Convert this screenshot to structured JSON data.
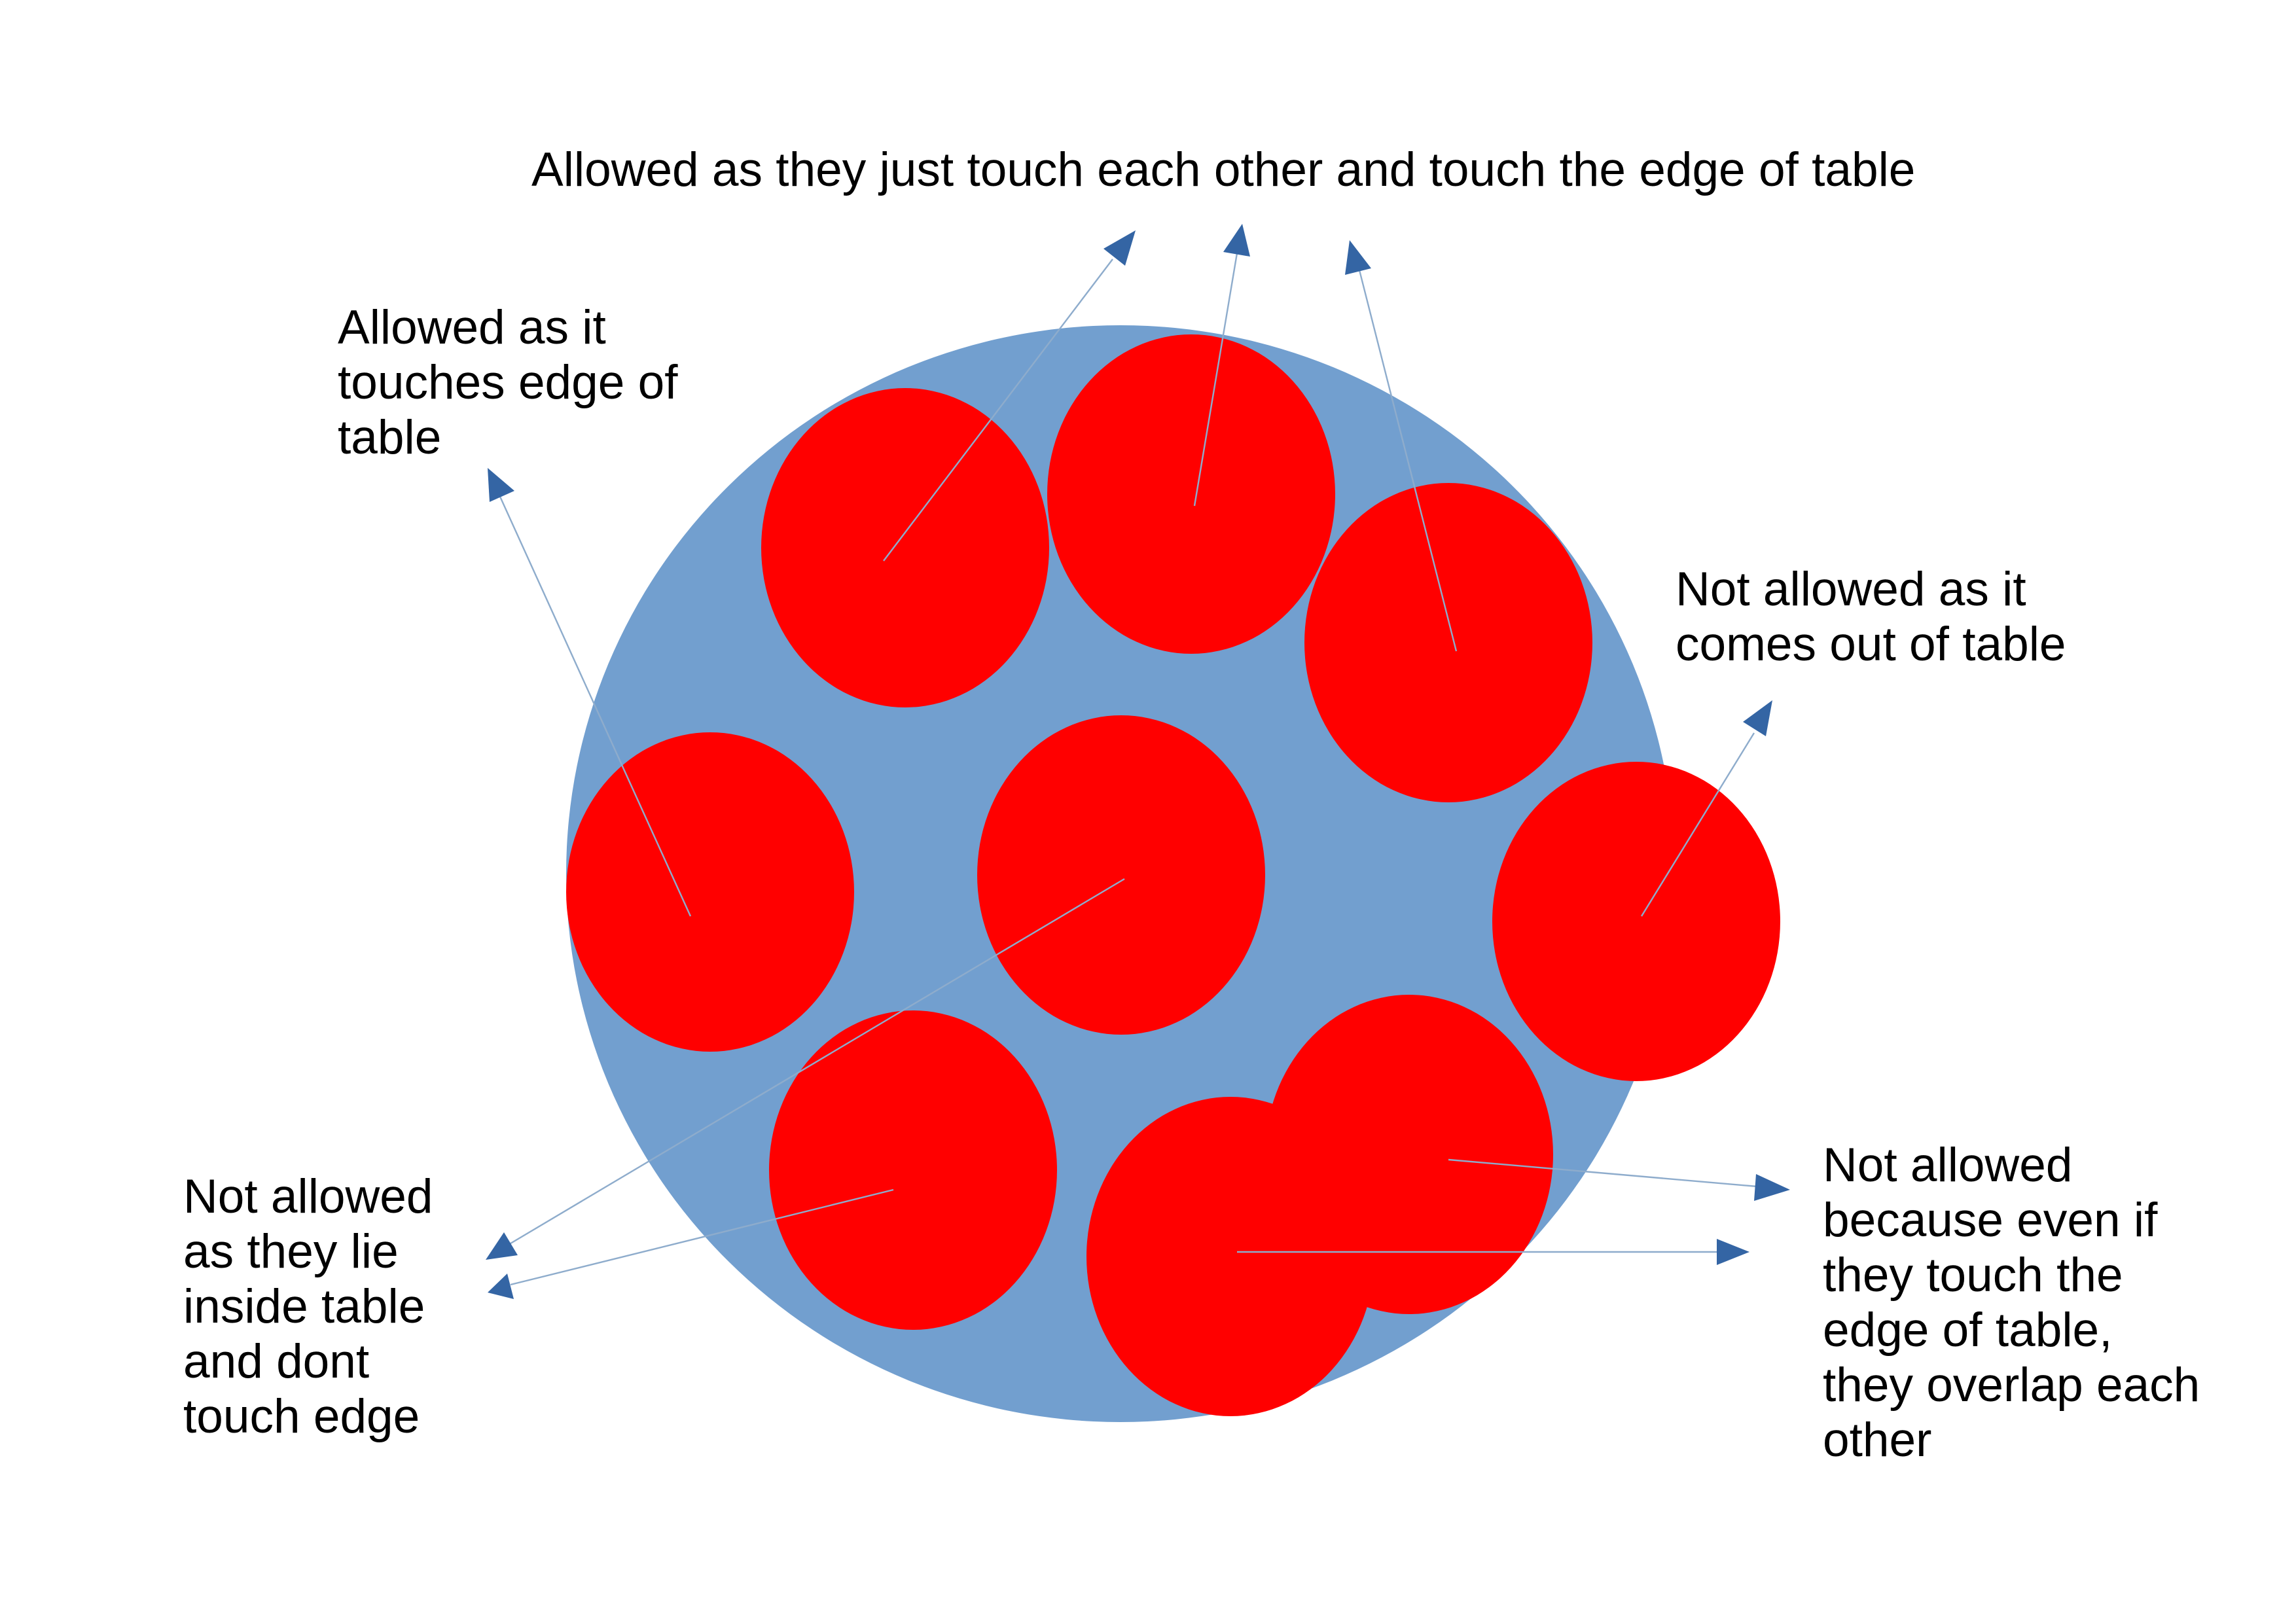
{
  "diagram": {
    "colors": {
      "background": "#ffffff",
      "table": "#729fcf",
      "plate": "#ff0000",
      "connector_line": "#8eaccc",
      "arrowhead": "#3465a4",
      "text": "#000000"
    },
    "annotations": {
      "top_touching": [
        "Allowed as they just touch each other and touch the edge of table"
      ],
      "left_edge": [
        "Allowed as it",
        "touches edge of",
        "table"
      ],
      "right_outside": [
        "Not allowed as it",
        "comes out of table"
      ],
      "bottom_left_inside": [
        "Not allowed",
        "as they lie",
        "inside table",
        "and dont",
        "touch edge"
      ],
      "bottom_right_overlap": [
        "Not allowed",
        "because even if",
        "they touch the",
        "edge of table,",
        "they overlap each",
        "other"
      ]
    }
  }
}
